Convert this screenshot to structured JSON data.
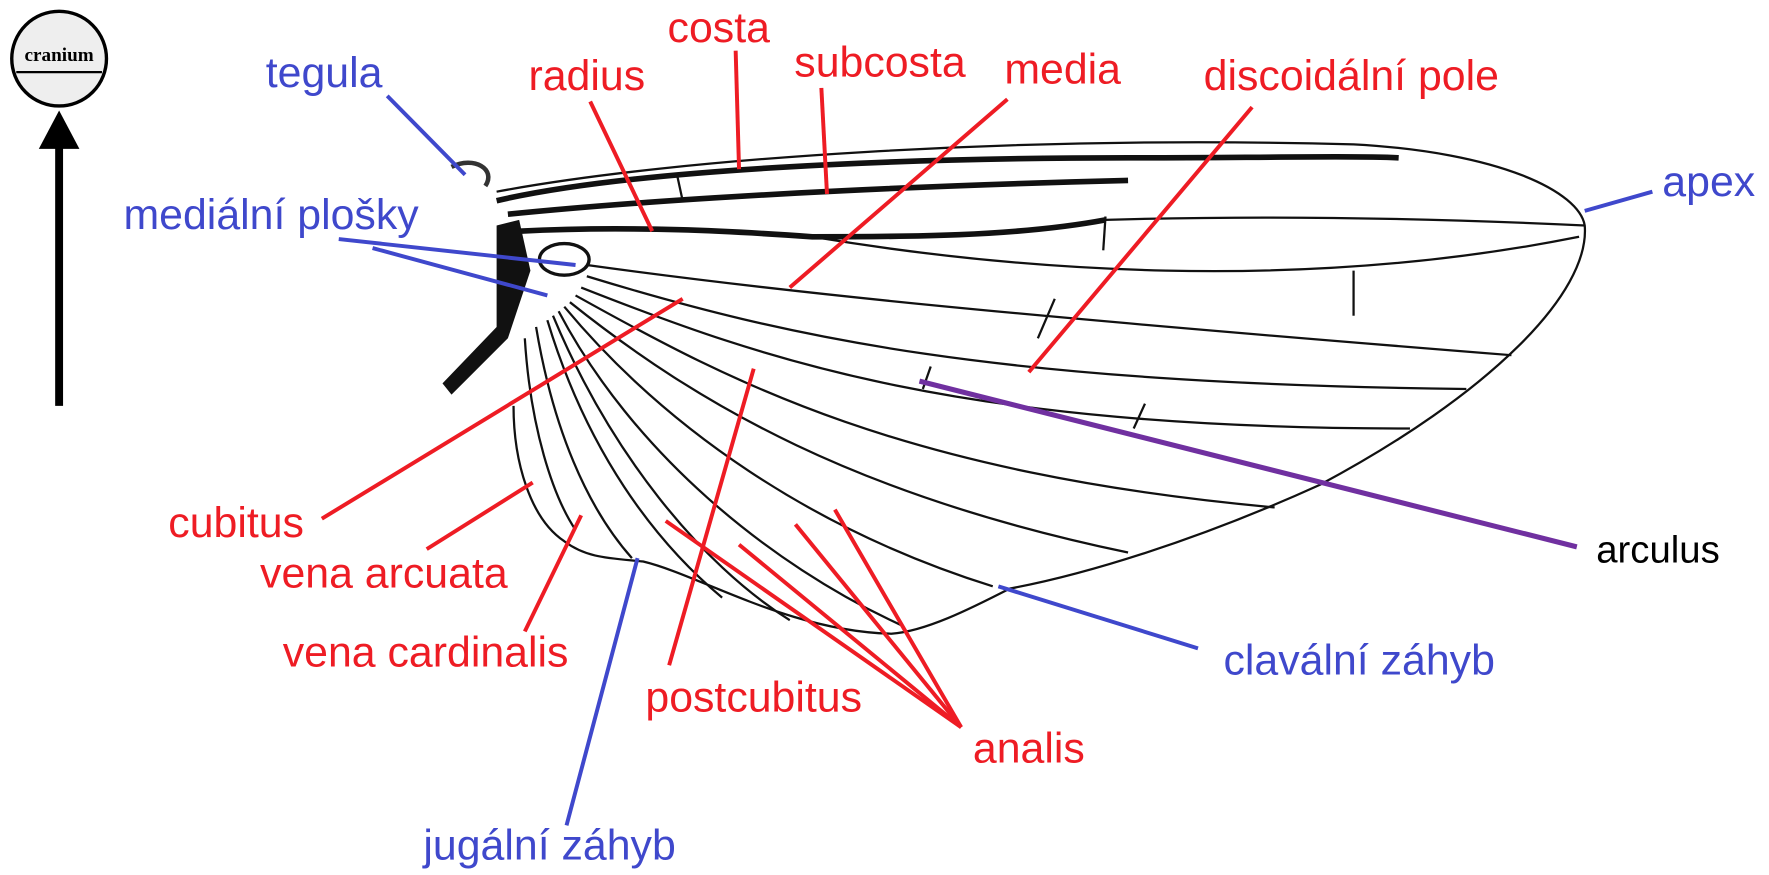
{
  "cranium": "cranium",
  "labels": {
    "costa": "costa",
    "subcosta": "subcosta",
    "radius": "radius",
    "media": "media",
    "discoidal_field": "discoidální pole",
    "tegula": "tegula",
    "medial_plates": "mediální plošky",
    "apex": "apex",
    "arculus": "arculus",
    "claval_fold": "clavální záhyb",
    "cubitus": "cubitus",
    "vena_arcuata": "vena arcuata",
    "vena_cardinalis": "vena cardinalis",
    "postcubitus": "postcubitus",
    "analis": "analis",
    "jugal_fold": "jugální záhyb"
  }
}
